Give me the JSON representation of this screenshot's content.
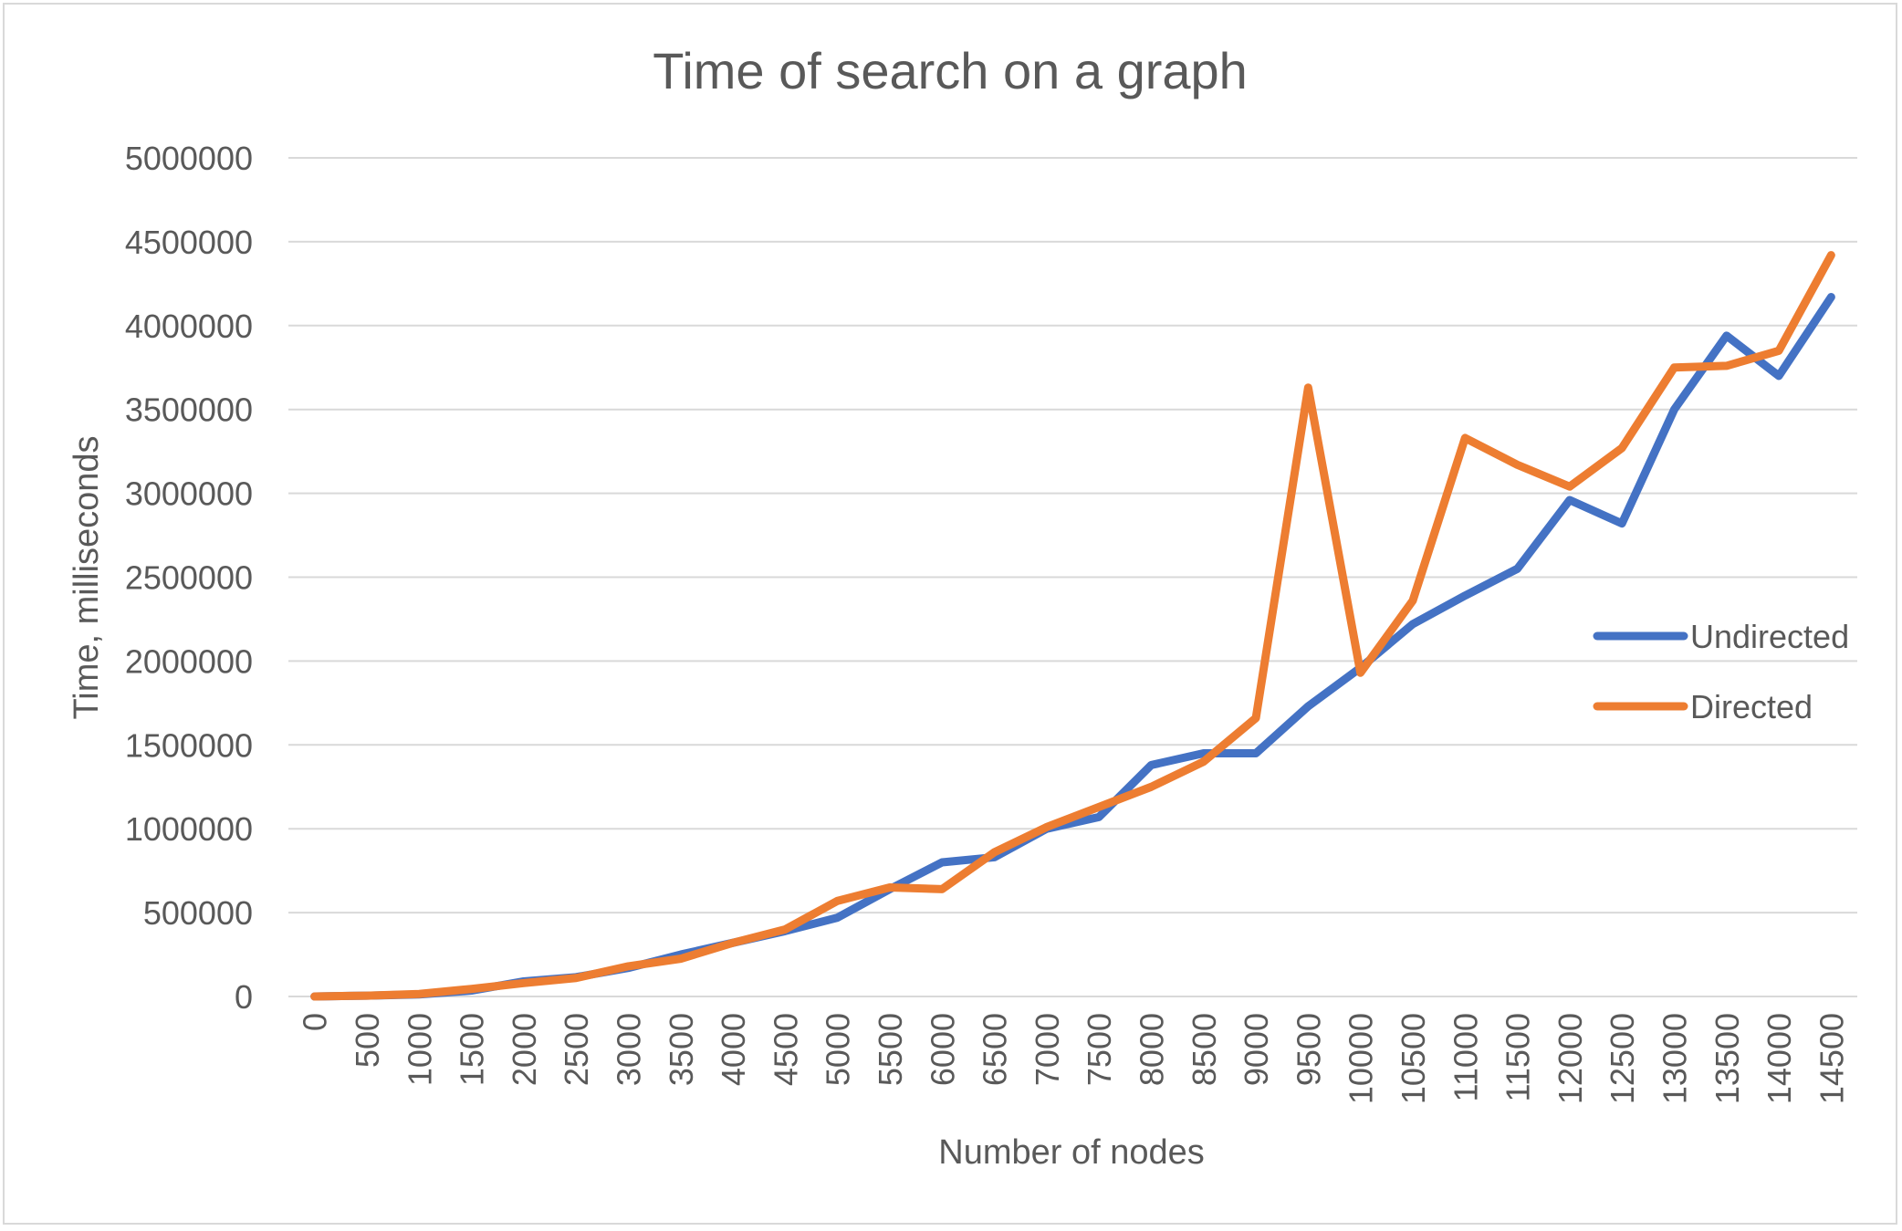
{
  "chart_data": {
    "type": "line",
    "title": "Time of search on a graph",
    "xlabel": "Number of nodes",
    "ylabel": "Time, milliseconds",
    "x": [
      0,
      500,
      1000,
      1500,
      2000,
      2500,
      3000,
      3500,
      4000,
      4500,
      5000,
      5500,
      6000,
      6500,
      7000,
      7500,
      8000,
      8500,
      9000,
      9500,
      10000,
      10500,
      11000,
      11500,
      12000,
      12500,
      13000,
      13500,
      14000,
      14500
    ],
    "ylim": [
      0,
      5000000
    ],
    "yticks": [
      0,
      500000,
      1000000,
      1500000,
      2000000,
      2500000,
      3000000,
      3500000,
      4000000,
      4500000,
      5000000
    ],
    "grid": true,
    "legend_position": "right",
    "series": [
      {
        "name": "Undirected",
        "color": "#4472C4",
        "values": [
          0,
          5000,
          12000,
          35000,
          90000,
          115000,
          170000,
          250000,
          320000,
          390000,
          470000,
          640000,
          800000,
          830000,
          1000000,
          1070000,
          1380000,
          1450000,
          1450000,
          1730000,
          1960000,
          2220000,
          2390000,
          2550000,
          2960000,
          2820000,
          3500000,
          3940000,
          3700000,
          4170000
        ]
      },
      {
        "name": "Directed",
        "color": "#ED7D31",
        "values": [
          0,
          5000,
          15000,
          45000,
          80000,
          110000,
          180000,
          225000,
          320000,
          400000,
          570000,
          650000,
          640000,
          860000,
          1010000,
          1130000,
          1250000,
          1400000,
          1660000,
          3630000,
          1930000,
          2360000,
          3330000,
          3170000,
          3040000,
          3270000,
          3750000,
          3760000,
          3850000,
          4420000
        ]
      }
    ]
  }
}
